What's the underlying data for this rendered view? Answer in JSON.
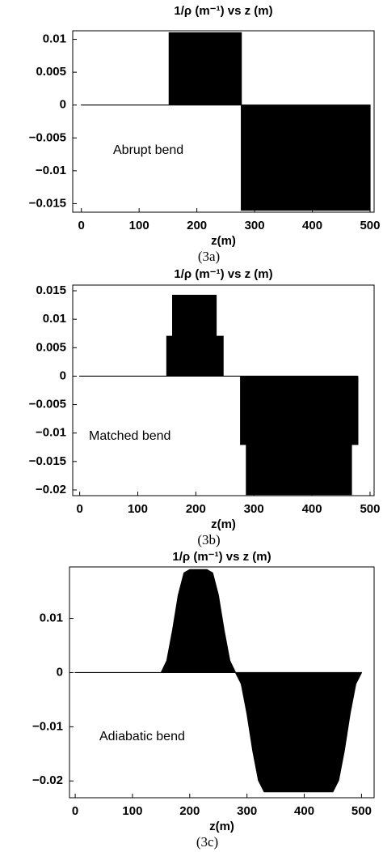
{
  "chart_data": [
    {
      "type": "area",
      "title": "1/ρ (m⁻¹) vs z (m)",
      "xlabel": "z(m)",
      "annotation": "Abrupt bend",
      "caption": "(3a)",
      "color": "#000000",
      "x": [
        0,
        152,
        152,
        277,
        277,
        500
      ],
      "values": [
        0,
        0,
        0.011,
        0.011,
        -0.016,
        -0.016
      ],
      "xlim": [
        -15,
        507
      ],
      "ylim": [
        -0.0163,
        0.0113
      ],
      "xticks": [
        0,
        100,
        200,
        300,
        400,
        500
      ],
      "yticks": [
        0.01,
        0.005,
        0,
        {
          "value": -0.005,
          "label": "−0.005"
        },
        {
          "value": -0.01,
          "label": "−0.01"
        },
        {
          "value": -0.015,
          "label": "−0.015"
        }
      ]
    },
    {
      "type": "area",
      "title": "1/ρ (m⁻¹) vs z (m)",
      "xlabel": "z(m)",
      "annotation": "Matched bend",
      "caption": "(3b)",
      "color": "#000000",
      "x": [
        0,
        150,
        150,
        160,
        160,
        235,
        235,
        247,
        247,
        277,
        277,
        287,
        287,
        468,
        468,
        479,
        479
      ],
      "values": [
        0,
        0,
        0.007,
        0.007,
        0.0142,
        0.0142,
        0.007,
        0.007,
        0,
        0,
        -0.012,
        -0.012,
        -0.0208,
        -0.0208,
        -0.012,
        -0.012,
        0
      ],
      "xlim": [
        -12,
        507
      ],
      "ylim": [
        -0.021,
        0.016
      ],
      "xticks": [
        0,
        100,
        200,
        300,
        400,
        500
      ],
      "yticks": [
        0.015,
        0.01,
        0.005,
        0,
        {
          "value": -0.005,
          "label": "−0.005"
        },
        {
          "value": -0.01,
          "label": "−0.01"
        },
        {
          "value": -0.015,
          "label": "−0.015"
        },
        {
          "value": -0.02,
          "label": "−0.02"
        }
      ]
    },
    {
      "type": "area",
      "title": "1/ρ (m⁻¹) vs z (m)",
      "xlabel": "z(m)",
      "annotation": "Adiabatic bend",
      "caption": "(3c)",
      "color": "#000000",
      "x": [
        0,
        150,
        160,
        170,
        180,
        190,
        200,
        210,
        220,
        230,
        240,
        250,
        260,
        270,
        280,
        290,
        300,
        310,
        320,
        330,
        340,
        350,
        360,
        370,
        380,
        390,
        400,
        410,
        420,
        430,
        440,
        450,
        460,
        470,
        480,
        490,
        500
      ],
      "values": [
        0,
        0,
        0.0022,
        0.0078,
        0.0143,
        0.0184,
        0.019,
        0.019,
        0.019,
        0.019,
        0.0184,
        0.0143,
        0.0078,
        0.0022,
        0,
        -0.0021,
        -0.0076,
        -0.0144,
        -0.0199,
        -0.022,
        -0.022,
        -0.022,
        -0.022,
        -0.022,
        -0.022,
        -0.022,
        -0.022,
        -0.022,
        -0.022,
        -0.022,
        -0.022,
        -0.022,
        -0.0199,
        -0.0144,
        -0.0076,
        -0.0021,
        0
      ],
      "xlim": [
        -10,
        522
      ],
      "ylim": [
        -0.0231,
        0.0195
      ],
      "xticks": [
        0,
        100,
        200,
        300,
        400,
        500
      ],
      "yticks": [
        0.01,
        0,
        {
          "value": -0.01,
          "label": "−0.01"
        },
        {
          "value": -0.02,
          "label": "−0.02"
        }
      ]
    }
  ]
}
